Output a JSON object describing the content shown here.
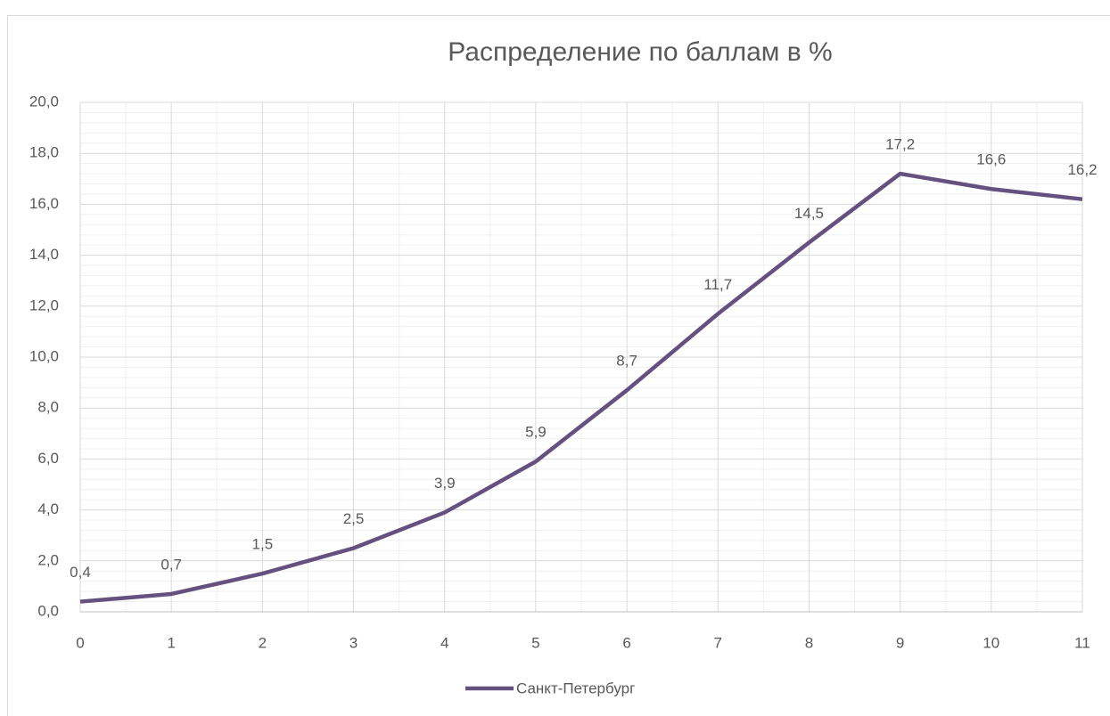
{
  "chart_data": {
    "type": "line",
    "title": "Распределение по баллам в %",
    "x": [
      0,
      1,
      2,
      3,
      4,
      5,
      6,
      7,
      8,
      9,
      10,
      11
    ],
    "series": [
      {
        "name": "Санкт-Петербург",
        "color": "#65517f",
        "values": [
          0.4,
          0.7,
          1.5,
          2.5,
          3.9,
          5.9,
          8.7,
          11.7,
          14.5,
          17.2,
          16.6,
          16.2
        ],
        "value_labels": [
          "0,4",
          "0,7",
          "1,5",
          "2,5",
          "3,9",
          "5,9",
          "8,7",
          "11,7",
          "14,5",
          "17,2",
          "16,6",
          "16,2"
        ]
      }
    ],
    "xlim": [
      0,
      11
    ],
    "xticks": [
      0,
      1,
      2,
      3,
      4,
      5,
      6,
      7,
      8,
      9,
      10,
      11
    ],
    "ylim": [
      0,
      20
    ],
    "yticks": [
      {
        "value": 0,
        "label": "0,0"
      },
      {
        "value": 2,
        "label": "2,0"
      },
      {
        "value": 4,
        "label": "4,0"
      },
      {
        "value": 6,
        "label": "6,0"
      },
      {
        "value": 8,
        "label": "8,0"
      },
      {
        "value": 10,
        "label": "10,0"
      },
      {
        "value": 12,
        "label": "12,0"
      },
      {
        "value": 14,
        "label": "14,0"
      },
      {
        "value": 16,
        "label": "16,0"
      },
      {
        "value": 18,
        "label": "18,0"
      },
      {
        "value": 20,
        "label": "20,0"
      }
    ],
    "grid": true,
    "minor_grid": true,
    "legend": "bottom"
  }
}
